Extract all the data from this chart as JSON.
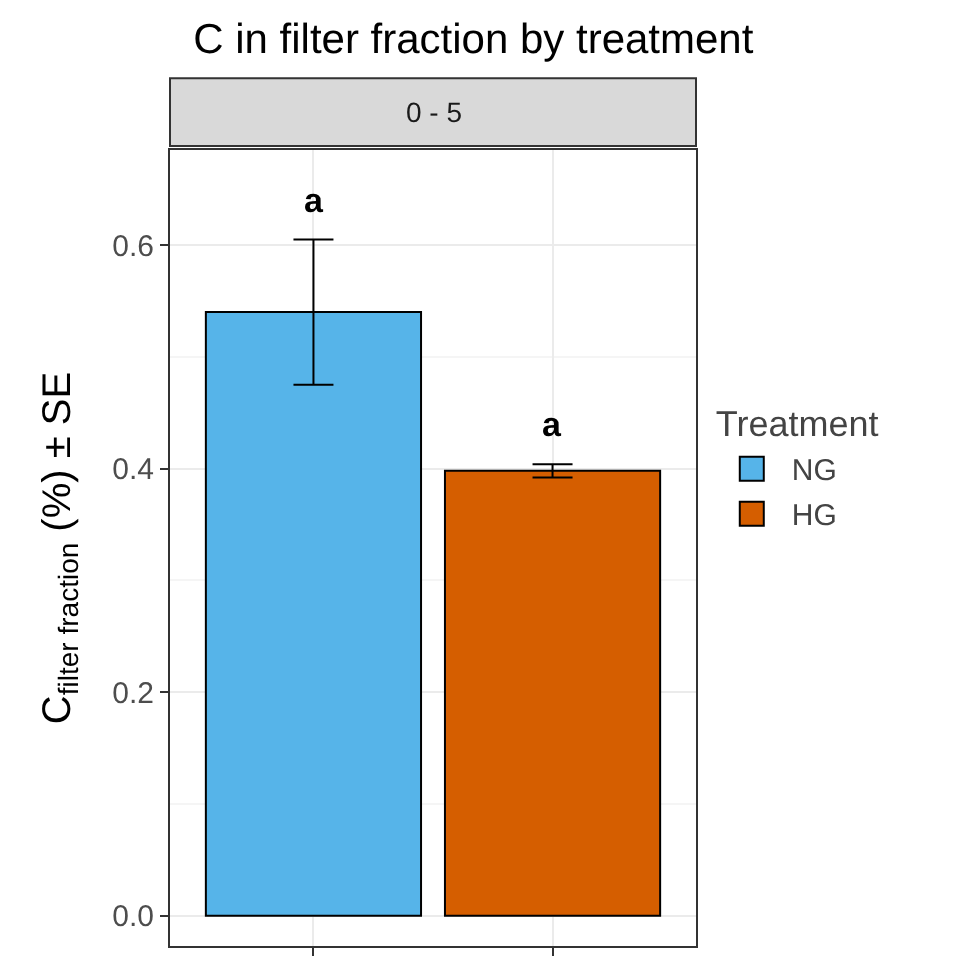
{
  "chart_data": {
    "type": "bar",
    "title": "C in filter fraction by treatment",
    "ylabel": "C$_{filter fraction}$ (%) ± SE",
    "legend_title": "Treatment",
    "categories": [
      null,
      null
    ],
    "series": [
      {
        "name": "NG",
        "color": "#56b4e9",
        "values": [
          0.54,
          null
        ],
        "errors": [
          0.065,
          null
        ]
      },
      {
        "name": "HG",
        "color": "#d55e00",
        "values": [
          null,
          0.398
        ],
        "errors": [
          null,
          0.006
        ]
      }
    ],
    "annotations": [
      "0 - 5",
      {
        "text": "a",
        "y": 0.604
      },
      {
        "text": "a",
        "y": 0.404
      }
    ],
    "ylim": [
      -0.027,
      0.685
    ],
    "yticks": [
      {
        "value": 0,
        "label": "0.0"
      },
      0.2,
      0.4,
      0.6
    ],
    "grid": true,
    "legend": "right"
  }
}
